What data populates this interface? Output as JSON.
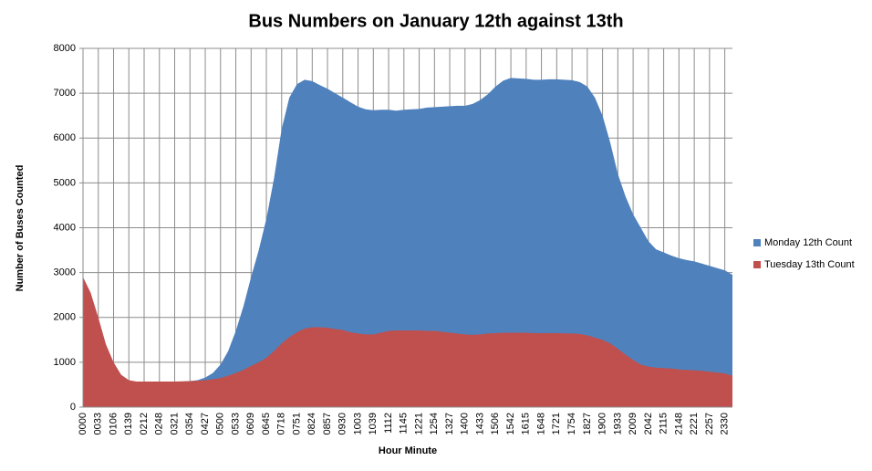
{
  "chart_data": {
    "type": "area",
    "title": "Bus Numbers on January 12th against 13th",
    "x_label": "Hour Minute",
    "y_label": "Number of Buses Counted",
    "categories": [
      "0000",
      null,
      "0033",
      null,
      "0106",
      null,
      "0139",
      null,
      "0212",
      null,
      "0248",
      null,
      "0321",
      null,
      "0354",
      null,
      "0427",
      null,
      "0500",
      null,
      "0533",
      null,
      "0609",
      null,
      "0645",
      null,
      "0718",
      null,
      "0751",
      null,
      "0824",
      null,
      "0857",
      null,
      "0930",
      null,
      "1003",
      null,
      "1039",
      null,
      "1112",
      null,
      "1145",
      null,
      "1221",
      null,
      "1254",
      null,
      "1327",
      null,
      "1400",
      null,
      "1433",
      null,
      "1506",
      null,
      "1542",
      null,
      "1615",
      null,
      "1648",
      null,
      "1721",
      null,
      "1754",
      null,
      "1827",
      null,
      "1900",
      null,
      "1933",
      null,
      "2009",
      null,
      "2042",
      null,
      "2115",
      null,
      "2148",
      null,
      "2221",
      null,
      "2257",
      null,
      "2330",
      null
    ],
    "series": [
      {
        "name": "Monday 12th Count",
        "color": "#4f81bd",
        "values": [
          2850,
          2500,
          1950,
          1380,
          980,
          700,
          590,
          560,
          560,
          560,
          560,
          560,
          565,
          570,
          580,
          600,
          660,
          760,
          950,
          1250,
          1700,
          2250,
          2900,
          3500,
          4200,
          5100,
          6200,
          6900,
          7200,
          7300,
          7270,
          7180,
          7100,
          7000,
          6900,
          6800,
          6700,
          6640,
          6620,
          6630,
          6630,
          6610,
          6630,
          6640,
          6650,
          6680,
          6690,
          6700,
          6710,
          6720,
          6720,
          6760,
          6850,
          6980,
          7150,
          7280,
          7340,
          7330,
          7320,
          7300,
          7300,
          7310,
          7310,
          7300,
          7290,
          7250,
          7150,
          6900,
          6500,
          5900,
          5200,
          4700,
          4300,
          4000,
          3700,
          3520,
          3450,
          3380,
          3320,
          3280,
          3250,
          3200,
          3150,
          3100,
          3050,
          2950
        ]
      },
      {
        "name": "Tuesday 13th Count",
        "color": "#c0504d",
        "values": [
          2900,
          2550,
          2000,
          1400,
          1000,
          720,
          600,
          570,
          570,
          570,
          570,
          570,
          570,
          575,
          580,
          590,
          600,
          620,
          650,
          700,
          760,
          830,
          920,
          1000,
          1100,
          1250,
          1420,
          1560,
          1670,
          1750,
          1780,
          1780,
          1770,
          1740,
          1720,
          1670,
          1640,
          1620,
          1620,
          1660,
          1700,
          1710,
          1710,
          1710,
          1710,
          1700,
          1700,
          1680,
          1660,
          1640,
          1620,
          1610,
          1620,
          1640,
          1650,
          1660,
          1660,
          1660,
          1660,
          1650,
          1650,
          1650,
          1650,
          1645,
          1640,
          1630,
          1600,
          1550,
          1500,
          1420,
          1300,
          1170,
          1050,
          950,
          900,
          880,
          870,
          860,
          840,
          830,
          820,
          810,
          790,
          770,
          750,
          700
        ]
      }
    ],
    "ylim": [
      0,
      8000
    ],
    "yticks": [
      0,
      1000,
      2000,
      3000,
      4000,
      5000,
      6000,
      7000,
      8000
    ],
    "grid": true,
    "legend": "right"
  }
}
